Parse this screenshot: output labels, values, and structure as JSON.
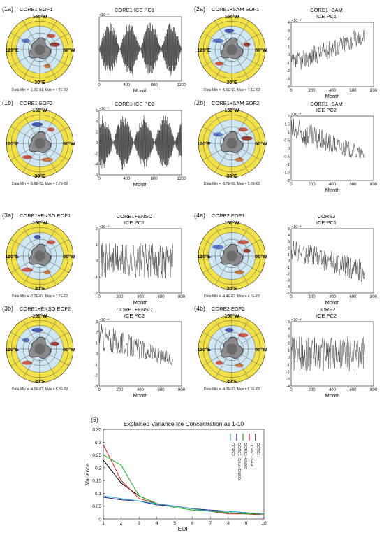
{
  "panels": [
    {
      "id": "(1a)",
      "map_title": "CORE1 EOF1",
      "data_minmax": "Data Min = -1.4E-01, Max = 4.7E-02",
      "ts_title": [
        "CORE1 ICE PC1"
      ],
      "exponent": "×10⁻⁵",
      "xlabel": "Month",
      "xticks": [
        0,
        400,
        800,
        1200
      ],
      "xmax": 1200,
      "yticks": [],
      "ymin": -1,
      "ymax": 1,
      "pattern": "seasonal",
      "labels": {
        "top": "150°W",
        "left": "120°E",
        "right": "60°W",
        "bottom": "30°E"
      }
    },
    {
      "id": "(1b)",
      "map_title": "CORE1 EOF2",
      "data_minmax": "Data Min = -5.9E-02, Max = 9.7E-02",
      "ts_title": [
        "CORE1 ICE PC2"
      ],
      "exponent": "×10⁻⁵",
      "xlabel": "Month",
      "xticks": [
        0,
        400,
        800,
        1200
      ],
      "xmax": 1200,
      "yticks": [
        -6,
        -4,
        -2,
        0,
        2,
        4,
        6
      ],
      "ymin": -6,
      "ymax": 6,
      "pattern": "seasonal",
      "labels": {
        "top": "150°W",
        "left": "120°E",
        "right": "60°W",
        "bottom": "30°E"
      }
    },
    {
      "id": "(2a)",
      "map_title": "CORE1+SAM EOF1",
      "data_minmax": "Data Min = -5.6E-02, Max = 7.1E-02",
      "ts_title": [
        "CORE1+SAM",
        "ICE PC1"
      ],
      "exponent": "×10⁻⁴",
      "xlabel": "Month",
      "xticks": [
        0,
        200,
        400,
        600,
        800
      ],
      "xmax": 800,
      "yticks": [
        -4,
        -3,
        -2,
        -1,
        0,
        1,
        2,
        3,
        4
      ],
      "ymin": -4,
      "ymax": 4,
      "pattern": "trend",
      "labels": {
        "top": "150°W",
        "left": "120°E",
        "right": "60°W",
        "bottom": "30°E"
      }
    },
    {
      "id": "(2b)",
      "map_title": "CORE1+SAM EOF2",
      "data_minmax": "Data Min = -6.7E-02, Max = 5.6E-02",
      "ts_title": [
        "CORE1+SAM",
        "ICE PC2"
      ],
      "exponent": "×10⁻⁴",
      "xlabel": "Month",
      "xticks": [
        0,
        200,
        400,
        600,
        800
      ],
      "xmax": 800,
      "yticks": [
        -2,
        -1.5,
        -1,
        -0.5,
        0,
        0.5,
        1,
        1.5,
        2
      ],
      "ymin": -2,
      "ymax": 2,
      "pattern": "decay",
      "labels": {
        "top": "150°W",
        "left": "120°E",
        "right": "60°W",
        "bottom": "30°E"
      }
    },
    {
      "id": "(3a)",
      "map_title": "CORE1+ENSO EOF1",
      "data_minmax": "Data Min = -7.2E-02, Max = 3.7E-02",
      "ts_title": [
        "CORE1+ENSO",
        "ICE PC1"
      ],
      "exponent": "×10⁻⁴",
      "xlabel": "Month",
      "xticks": [
        0,
        200,
        400,
        600,
        800
      ],
      "xmax": 800,
      "yticks": [
        -2,
        -1,
        0,
        1,
        2
      ],
      "ymin": -2,
      "ymax": 2,
      "pattern": "noise",
      "labels": {
        "top": "150°W",
        "left": "120°E",
        "right": "60°W",
        "bottom": "30°E"
      }
    },
    {
      "id": "(3b)",
      "map_title": "CORE1+ENSO EOF2",
      "data_minmax": "Data Min = -4.5E-02, Max = 8.3E-02",
      "ts_title": [
        "CORE1+ENSO",
        "ICE PC2"
      ],
      "exponent": "×10⁻⁴",
      "xlabel": "Month",
      "xticks": [
        0,
        200,
        400,
        600,
        800
      ],
      "xmax": 800,
      "yticks": [
        -3,
        -2,
        -1,
        0,
        1,
        2,
        3
      ],
      "ymin": -3,
      "ymax": 3,
      "pattern": "decay",
      "labels": {
        "top": "150°W",
        "left": "120°E",
        "right": "60°W",
        "bottom": "30°E"
      }
    },
    {
      "id": "(4a)",
      "map_title": "CORE2 EOF1",
      "data_minmax": "Data Min = -4.4E-02, Max = 4.6E-02",
      "ts_title": [
        "CORE2",
        "ICE PC1"
      ],
      "exponent": "×10⁻⁴",
      "xlabel": "Month",
      "xticks": [
        0,
        200,
        400,
        600,
        800
      ],
      "xmax": 800,
      "yticks": [
        -5,
        -4,
        -3,
        -2,
        -1,
        0,
        1,
        2,
        3,
        4,
        5
      ],
      "ymin": -5,
      "ymax": 5,
      "pattern": "trend-down",
      "labels": {
        "top": "150°W",
        "left": "120°E",
        "right": "60°W",
        "bottom": "30°E"
      }
    },
    {
      "id": "(4b)",
      "map_title": "CORE2 EOF2",
      "data_minmax": "Data Min = -4.0E-02, Max = 5.9E-02",
      "ts_title": [
        "CORE2",
        "ICE PC2"
      ],
      "exponent": "×10⁻⁴",
      "xlabel": "Month",
      "xticks": [
        0,
        200,
        400,
        600,
        800
      ],
      "xmax": 800,
      "yticks": [
        -4,
        -3,
        -2,
        -1,
        0,
        1,
        2,
        3,
        4,
        5
      ],
      "ymin": -4,
      "ymax": 5,
      "pattern": "noise",
      "labels": {
        "top": "150°W",
        "left": "120°E",
        "right": "60°W",
        "bottom": "30°E"
      }
    }
  ],
  "bottom": {
    "id": "(5)"
  },
  "chart_data": {
    "type": "line",
    "title": "Explained Variance Ice Concentration as 1-10",
    "xlabel": "EOF",
    "ylabel": "Variance",
    "xlim": [
      1,
      10
    ],
    "ylim": [
      0,
      0.35
    ],
    "xticks": [
      1,
      2,
      3,
      4,
      5,
      6,
      7,
      8,
      9,
      10
    ],
    "yticks": [
      0,
      0.05,
      0.1,
      0.15,
      0.2,
      0.25,
      0.3,
      0.35
    ],
    "grid": false,
    "legend_position": "top-right",
    "x": [
      1,
      2,
      3,
      4,
      5,
      6,
      7,
      8,
      9,
      10
    ],
    "series": [
      {
        "name": "CORE1",
        "color": "#000000",
        "values": [
          0.23,
          0.14,
          0.09,
          0.06,
          0.05,
          0.04,
          0.03,
          0.025,
          0.02,
          0.02
        ]
      },
      {
        "name": "CORE1+SAM",
        "color": "#cc2222",
        "values": [
          0.29,
          0.15,
          0.08,
          0.06,
          0.05,
          0.04,
          0.03,
          0.02,
          0.02,
          0.015
        ]
      },
      {
        "name": "CORE1+ENSO",
        "color": "#22aa22",
        "values": [
          0.25,
          0.21,
          0.09,
          0.06,
          0.045,
          0.035,
          0.03,
          0.025,
          0.02,
          0.02
        ]
      },
      {
        "name": "CORE1+SAM+ENSO",
        "color": "#222288",
        "values": [
          0.085,
          0.075,
          0.07,
          0.055,
          0.05,
          0.04,
          0.035,
          0.03,
          0.025,
          0.02
        ]
      },
      {
        "name": "CORE2",
        "color": "#33aacc",
        "values": [
          0.09,
          0.08,
          0.07,
          0.06,
          0.05,
          0.04,
          0.03,
          0.03,
          0.025,
          0.02
        ]
      }
    ]
  }
}
